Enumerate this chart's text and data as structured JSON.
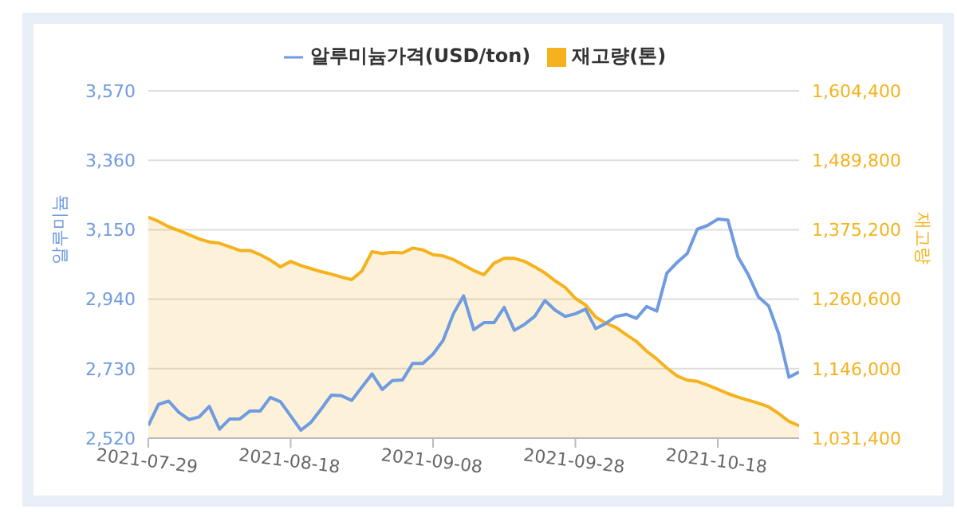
{
  "chart_data": {
    "type": "line",
    "categories": [
      "2021-07-29",
      null,
      null,
      null,
      null,
      null,
      null,
      null,
      null,
      null,
      null,
      null,
      null,
      null,
      "2021-08-18",
      null,
      null,
      null,
      null,
      null,
      null,
      null,
      null,
      null,
      null,
      null,
      null,
      null,
      "2021-09-08",
      null,
      null,
      null,
      null,
      null,
      null,
      null,
      null,
      null,
      null,
      null,
      null,
      null,
      "2021-09-28",
      null,
      null,
      null,
      null,
      null,
      null,
      null,
      null,
      null,
      null,
      null,
      null,
      null,
      "2021-10-18",
      null,
      null,
      null,
      null,
      null,
      null,
      null,
      null
    ],
    "ylabel": "알루미늄",
    "y2label": "재고량",
    "ylim": [
      2520,
      3570
    ],
    "yticks": [
      {
        "value": 2520,
        "label": "2,520"
      },
      {
        "value": 2730,
        "label": "2,730"
      },
      {
        "value": 2940,
        "label": "2,940"
      },
      {
        "value": 3150,
        "label": "3,150"
      },
      {
        "value": 3360,
        "label": "3,360"
      },
      {
        "value": 3570,
        "label": "3,570"
      }
    ],
    "y2lim": [
      1031400,
      1604400
    ],
    "y2ticks": [
      {
        "value": 1031400,
        "label": "1,031,400"
      },
      {
        "value": 1146000,
        "label": "1,146,000"
      },
      {
        "value": 1260600,
        "label": "1,260,600"
      },
      {
        "value": 1375200,
        "label": "1,375,200"
      },
      {
        "value": 1489800,
        "label": "1,489,800"
      },
      {
        "value": 1604400,
        "label": "1,604,400"
      }
    ],
    "grid": "y",
    "legend": "top",
    "marker": "none",
    "line_style": "solid",
    "series": [
      {
        "name": "알루미늄가격(USD/ton)",
        "color": "#6f9be0",
        "values": [
          2558,
          2622,
          2632,
          2598,
          2576,
          2584,
          2616,
          2547,
          2578,
          2578,
          2602,
          2602,
          2643,
          2630,
          2587,
          2544,
          2568,
          2608,
          2650,
          2648,
          2634,
          2674,
          2714,
          2667,
          2694,
          2696,
          2746,
          2746,
          2774,
          2816,
          2896,
          2950,
          2848,
          2869,
          2869,
          2915,
          2846,
          2864,
          2888,
          2936,
          2907,
          2888,
          2896,
          2910,
          2851,
          2867,
          2888,
          2894,
          2882,
          2918,
          2904,
          3019,
          3051,
          3078,
          3152,
          3163,
          3182,
          3179,
          3067,
          3014,
          2947,
          2920,
          2835,
          2704,
          2720
        ]
      },
      {
        "name": "재고량(톤)",
        "type": "area",
        "axis": "y2",
        "color": "#f5b21c",
        "values": [
          1396000,
          1389000,
          1380000,
          1374000,
          1367000,
          1360000,
          1355000,
          1353000,
          1347000,
          1341000,
          1341000,
          1334000,
          1325000,
          1314000,
          1323000,
          1316000,
          1311000,
          1306000,
          1302000,
          1297000,
          1293000,
          1307000,
          1339000,
          1336000,
          1338000,
          1337000,
          1345000,
          1342000,
          1334000,
          1332000,
          1326000,
          1317000,
          1308000,
          1301000,
          1320000,
          1328000,
          1328000,
          1323000,
          1314000,
          1304000,
          1291000,
          1280000,
          1262000,
          1251000,
          1231000,
          1221000,
          1214000,
          1202000,
          1191000,
          1175000,
          1162000,
          1147000,
          1134000,
          1127000,
          1125000,
          1119000,
          1112000,
          1105000,
          1099000,
          1094000,
          1089000,
          1083000,
          1072000,
          1059000,
          1052000
        ]
      }
    ]
  }
}
